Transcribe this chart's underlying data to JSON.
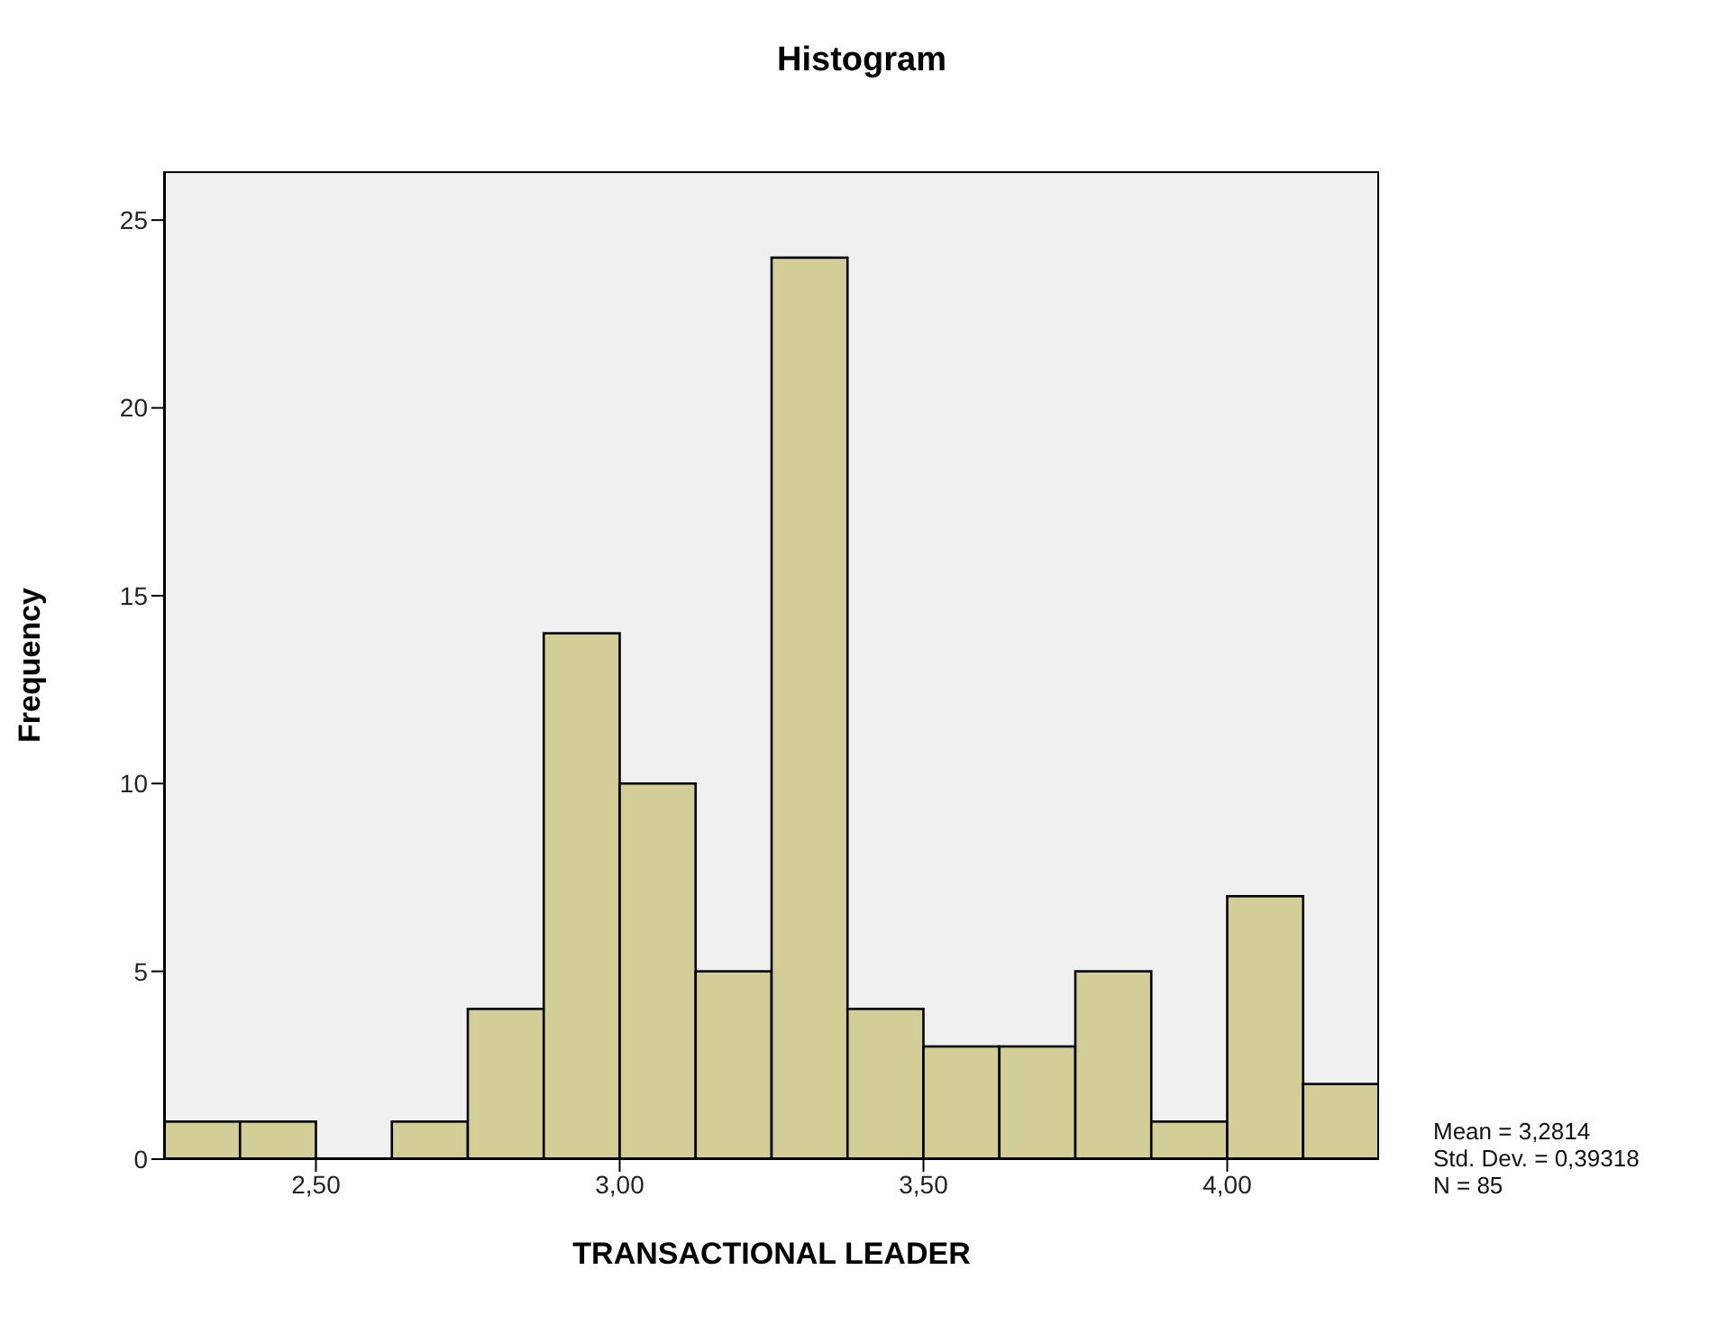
{
  "chart_data": {
    "type": "histogram",
    "title": "Histogram",
    "xlabel": "TRANSACTIONAL LEADER",
    "ylabel": "Frequency",
    "bins": [
      2.25,
      2.375,
      2.5,
      2.625,
      2.75,
      2.875,
      3.0,
      3.125,
      3.25,
      3.375,
      3.5,
      3.625,
      3.75,
      3.875,
      4.0,
      4.125,
      4.25
    ],
    "values": [
      1,
      1,
      0,
      1,
      4,
      14,
      10,
      5,
      24,
      4,
      3,
      3,
      5,
      1,
      7,
      2
    ],
    "color": "#d3ce97",
    "xlim": [
      2.25,
      4.25
    ],
    "xticks": [
      {
        "value": 2.5,
        "label": "2,50"
      },
      {
        "value": 3.0,
        "label": "3,00"
      },
      {
        "value": 3.5,
        "label": "3,50"
      },
      {
        "value": 4.0,
        "label": "4,00"
      }
    ],
    "ylim": [
      0,
      26.3
    ],
    "yticks": [
      0,
      5,
      10,
      15,
      20,
      25
    ],
    "annotations": [
      "Mean = 3,2814",
      "Std. Dev. = 0,39318",
      "N = 85"
    ]
  }
}
